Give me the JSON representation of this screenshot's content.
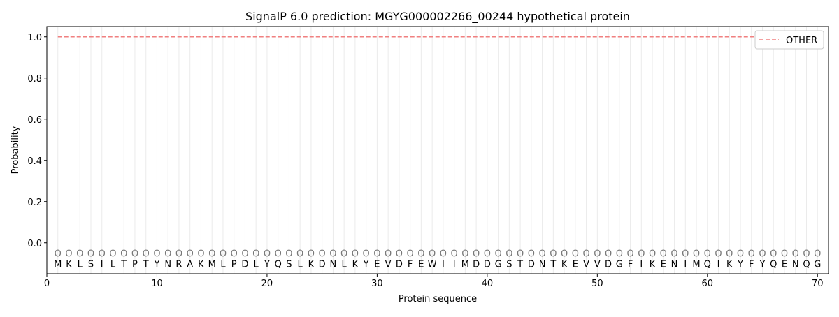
{
  "chart_data": {
    "type": "line",
    "title": "SignalP 6.0 prediction: MGYG000002266_00244 hypothetical protein",
    "xlabel": "Protein sequence",
    "ylabel": "Probability",
    "xlim": [
      0,
      71
    ],
    "ylim": [
      -0.15,
      1.05
    ],
    "xticks": [
      0,
      10,
      20,
      30,
      40,
      50,
      60,
      70
    ],
    "yticks": [
      0.0,
      0.2,
      0.4,
      0.6,
      0.8,
      1.0
    ],
    "sequence": "MKLSILTPTYNRAKMLPDLYQSLKDNLKYEVDFEWIIMDDGSTDNTKEVVDGFIKENIMQIKYFYQENQG",
    "region_labels": "OOOOOOOOOOOOOOOOOOOOOOOOOOOOOOOOOOOOOOOOOOOOOOOOOOOOOOOOOOOOOOOOOOOOOO",
    "series": [
      {
        "name": "OTHER",
        "color": "#f08080",
        "style": "dashed",
        "x_start": 1,
        "x_end": 70,
        "value": 1.0
      }
    ],
    "legend": "top-right",
    "grid": "vertical lines at each residue"
  }
}
